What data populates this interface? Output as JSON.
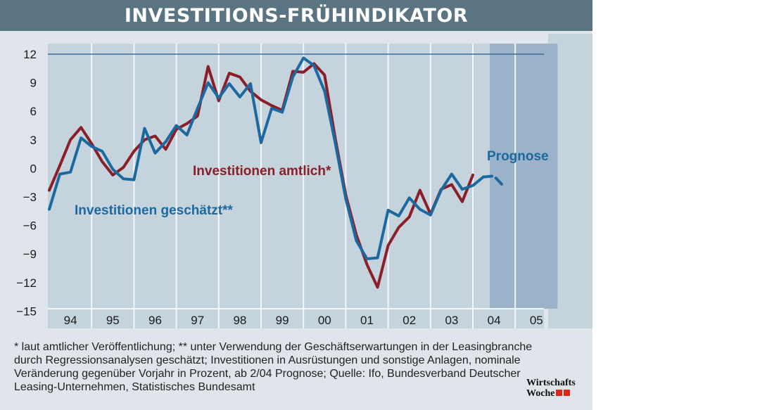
{
  "chart_data": {
    "type": "line",
    "title": "INVESTITIONS-FRÜHINDIKATOR",
    "y_ticks": [
      "12",
      "9",
      "6",
      "3",
      "0",
      "−3",
      "−6",
      "−9",
      "−12",
      "−15"
    ],
    "ylim": [
      -15,
      12
    ],
    "x_tick_labels": [
      "94",
      "95",
      "96",
      "97",
      "98",
      "99",
      "00",
      "01",
      "02",
      "03",
      "04",
      "05"
    ],
    "xlim": [
      1994,
      2006
    ],
    "grid": "vertical",
    "forecast_label": "Prognose",
    "forecast_ranges": [
      [
        2004.4,
        2005.0
      ],
      [
        2005.0,
        2006.0
      ]
    ],
    "series": [
      {
        "name": "Investitionen amtlich*",
        "color": "#8a1f2a",
        "x": [
          1994.0,
          1994.25,
          1994.5,
          1994.75,
          1995.0,
          1995.25,
          1995.5,
          1995.75,
          1996.0,
          1996.25,
          1996.5,
          1996.75,
          1997.0,
          1997.25,
          1997.5,
          1997.75,
          1998.0,
          1998.25,
          1998.5,
          1998.75,
          1999.0,
          1999.25,
          1999.5,
          1999.75,
          2000.0,
          2000.25,
          2000.5,
          2000.75,
          2001.0,
          2001.25,
          2001.5,
          2001.75,
          2002.0,
          2002.25,
          2002.5,
          2002.75,
          2003.0,
          2003.25,
          2003.5,
          2003.75,
          2004.0
        ],
        "values": [
          -2.3,
          0.3,
          3.0,
          4.3,
          2.6,
          0.7,
          -0.7,
          0.1,
          1.8,
          3.0,
          3.4,
          2.0,
          4.1,
          4.7,
          5.5,
          10.7,
          7.1,
          10.0,
          9.6,
          8.1,
          7.2,
          6.6,
          6.1,
          10.2,
          10.1,
          11.0,
          9.8,
          3.2,
          -2.8,
          -7.0,
          -10.1,
          -12.5,
          -8.1,
          -6.2,
          -5.1,
          -2.3,
          -4.8,
          -2.2,
          -1.7,
          -3.5,
          -0.7
        ]
      },
      {
        "name": "Investitionen geschätzt**",
        "color": "#1c69a0",
        "x": [
          1994.0,
          1994.25,
          1994.5,
          1994.75,
          1995.0,
          1995.25,
          1995.5,
          1995.75,
          1996.0,
          1996.25,
          1996.5,
          1996.75,
          1997.0,
          1997.25,
          1997.5,
          1997.75,
          1998.0,
          1998.25,
          1998.5,
          1998.75,
          1999.0,
          1999.25,
          1999.5,
          1999.75,
          2000.0,
          2000.25,
          2000.5,
          2000.75,
          2001.0,
          2001.25,
          2001.5,
          2001.75,
          2002.0,
          2002.25,
          2002.5,
          2002.75,
          2003.0,
          2003.25,
          2003.5,
          2003.75,
          2004.0,
          2004.25,
          2004.5,
          2004.75
        ],
        "values": [
          -4.3,
          -0.6,
          -0.4,
          3.2,
          2.3,
          1.8,
          -0.1,
          -1.1,
          -1.2,
          4.2,
          1.6,
          2.8,
          4.5,
          3.5,
          6.3,
          9.0,
          7.4,
          8.9,
          7.5,
          8.9,
          2.7,
          6.3,
          5.9,
          9.6,
          11.6,
          10.8,
          8.1,
          2.7,
          -3.2,
          -7.6,
          -9.5,
          -9.4,
          -4.4,
          -5.0,
          -3.1,
          -4.3,
          -4.9,
          -2.3,
          -0.6,
          -2.2,
          -1.8,
          -0.9,
          -0.8,
          -2.0
        ],
        "forecast_from_index": 41
      }
    ]
  },
  "footnote": {
    "text": "* laut amtlicher Veröffentlichung; ** unter Verwendung der Geschäftserwartungen in der Leasingbranche durch Regressionsanalysen geschätzt; Investitionen in Ausrüstungen und sonstige Anlagen, nominale Veränderung gegenüber Vorjahr in Prozent, ab 2/04 Prognose; Quelle: Ifo, Bundesverband Deutscher Leasing-Unternehmen, Statistisches Bundesamt"
  },
  "logo": {
    "line1": "Wirtschafts",
    "line2": "Woche"
  },
  "colors": {
    "title_bar": "#5a7482",
    "plot_background": "#c5d3dc",
    "frame": "#dfe5ea",
    "forecast_band": "#9bb3c9",
    "logo_square": "#d62a1e"
  }
}
